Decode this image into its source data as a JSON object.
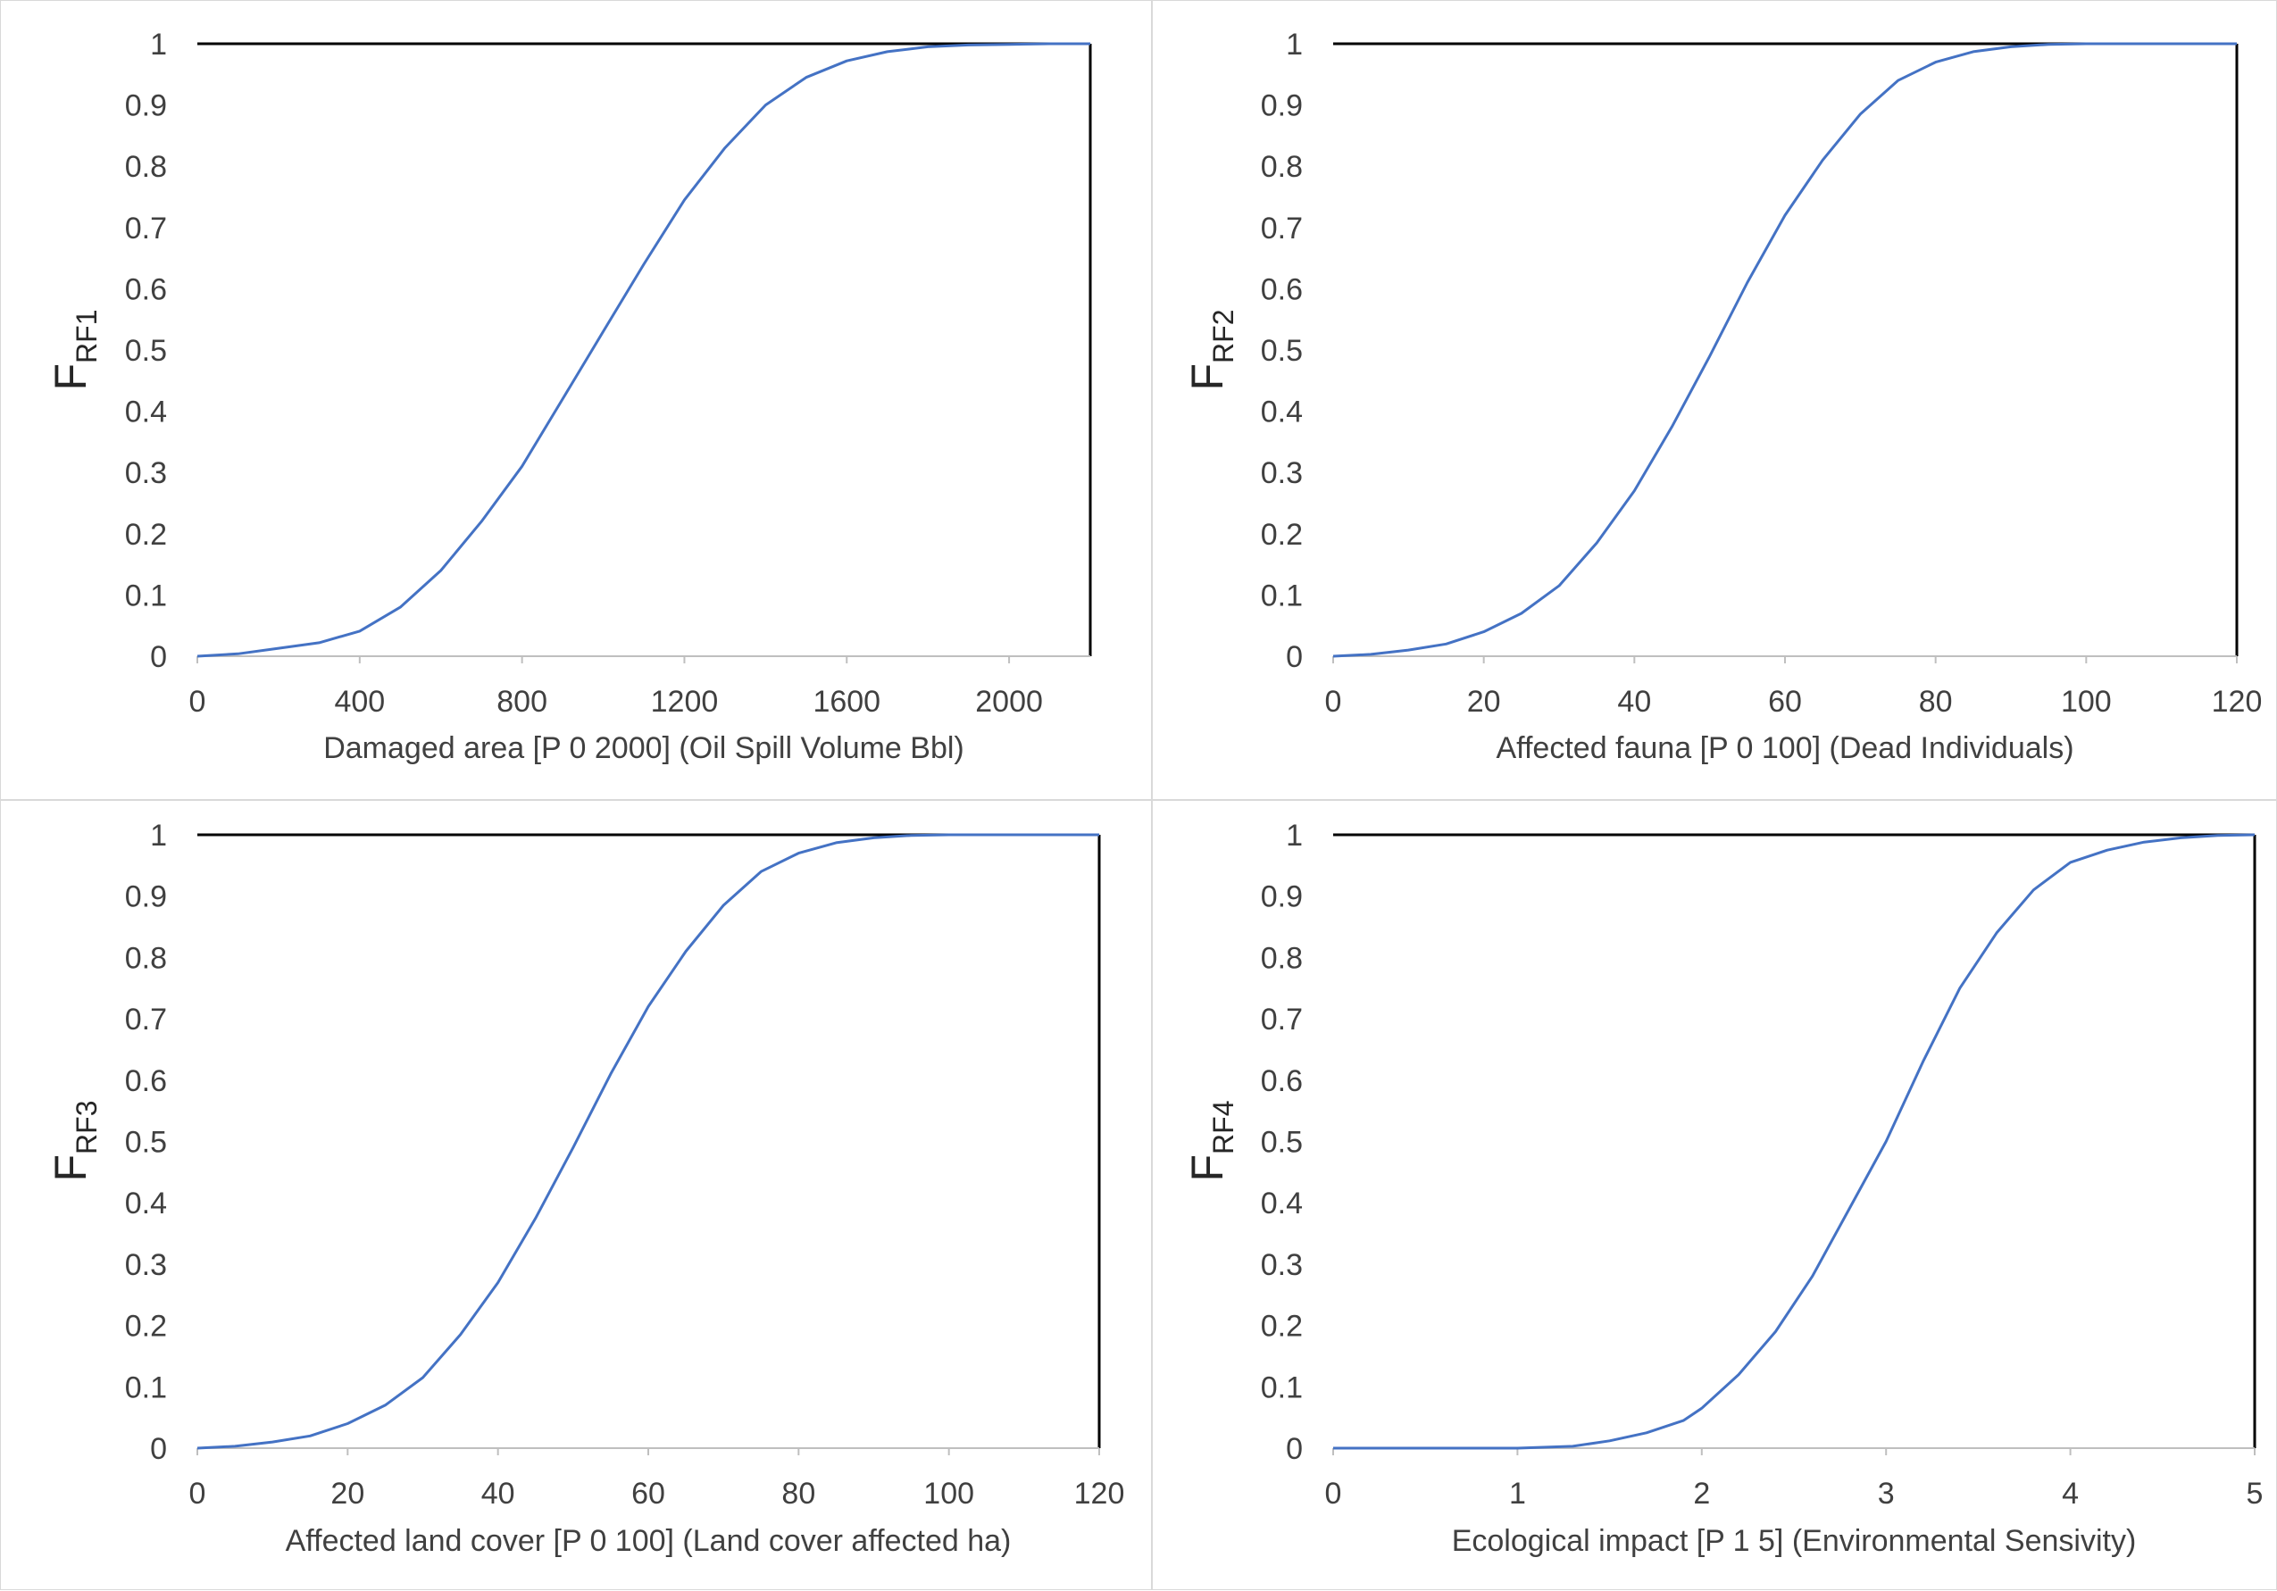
{
  "chart_data": [
    {
      "type": "line",
      "ylabel_main": "F",
      "ylabel_sub": "RF1",
      "xlabel": "Damaged area [P 0 2000] (Oil Spill Volume Bbl)",
      "xlim": [
        0,
        2200
      ],
      "ylim": [
        0,
        1
      ],
      "xticks": [
        0,
        400,
        800,
        1200,
        1600,
        2000
      ],
      "yticks": [
        0,
        0.1,
        0.2,
        0.3,
        0.4,
        0.5,
        0.6,
        0.7,
        0.8,
        0.9,
        1
      ],
      "grid": false,
      "line_color": "#4472c4",
      "series": [
        {
          "x": [
            0,
            100,
            200,
            300,
            400,
            500,
            600,
            700,
            800,
            900,
            1000,
            1100,
            1200,
            1300,
            1400,
            1500,
            1600,
            1700,
            1800,
            1900,
            2000,
            2100,
            2200
          ],
          "y": [
            0,
            0.004,
            0.013,
            0.022,
            0.041,
            0.08,
            0.14,
            0.22,
            0.31,
            0.42,
            0.53,
            0.64,
            0.745,
            0.83,
            0.9,
            0.945,
            0.972,
            0.987,
            0.995,
            0.998,
            0.999,
            1,
            1
          ]
        }
      ]
    },
    {
      "type": "line",
      "ylabel_main": "F",
      "ylabel_sub": "RF2",
      "xlabel": "Affected fauna [P 0 100] (Dead Individuals)",
      "xlim": [
        0,
        120
      ],
      "ylim": [
        0,
        1
      ],
      "xticks": [
        0,
        20,
        40,
        60,
        80,
        100,
        120
      ],
      "yticks": [
        0,
        0.1,
        0.2,
        0.3,
        0.4,
        0.5,
        0.6,
        0.7,
        0.8,
        0.9,
        1
      ],
      "grid": false,
      "line_color": "#4472c4",
      "series": [
        {
          "x": [
            0,
            5,
            10,
            15,
            20,
            25,
            30,
            35,
            40,
            45,
            50,
            55,
            60,
            65,
            70,
            75,
            80,
            85,
            90,
            95,
            100,
            110,
            120
          ],
          "y": [
            0,
            0.003,
            0.01,
            0.02,
            0.04,
            0.07,
            0.115,
            0.185,
            0.27,
            0.375,
            0.49,
            0.61,
            0.72,
            0.81,
            0.885,
            0.94,
            0.97,
            0.987,
            0.995,
            0.999,
            1,
            1,
            1
          ]
        }
      ]
    },
    {
      "type": "line",
      "ylabel_main": "F",
      "ylabel_sub": "RF3",
      "xlabel": "Affected land cover [P 0 100] (Land cover affected ha)",
      "xlim": [
        0,
        120
      ],
      "ylim": [
        0,
        1
      ],
      "xticks": [
        0,
        20,
        40,
        60,
        80,
        100,
        120
      ],
      "yticks": [
        0,
        0.1,
        0.2,
        0.3,
        0.4,
        0.5,
        0.6,
        0.7,
        0.8,
        0.9,
        1
      ],
      "grid": false,
      "line_color": "#4472c4",
      "series": [
        {
          "x": [
            0,
            5,
            10,
            15,
            20,
            25,
            30,
            35,
            40,
            45,
            50,
            55,
            60,
            65,
            70,
            75,
            80,
            85,
            90,
            95,
            100,
            110,
            120
          ],
          "y": [
            0,
            0.003,
            0.01,
            0.02,
            0.04,
            0.07,
            0.115,
            0.185,
            0.27,
            0.375,
            0.49,
            0.61,
            0.72,
            0.81,
            0.885,
            0.94,
            0.97,
            0.987,
            0.995,
            0.999,
            1,
            1,
            1
          ]
        }
      ]
    },
    {
      "type": "line",
      "ylabel_main": "F",
      "ylabel_sub": "RF4",
      "xlabel": "Ecological impact [P 1 5] (Environmental Sensivity)",
      "xlim": [
        0,
        5
      ],
      "ylim": [
        0,
        1
      ],
      "xticks": [
        0,
        1,
        2,
        3,
        4,
        5
      ],
      "yticks": [
        0,
        0.1,
        0.2,
        0.3,
        0.4,
        0.5,
        0.6,
        0.7,
        0.8,
        0.9,
        1
      ],
      "grid": false,
      "line_color": "#4472c4",
      "series": [
        {
          "x": [
            0,
            1,
            1.3,
            1.5,
            1.7,
            1.9,
            2,
            2.2,
            2.4,
            2.6,
            2.8,
            3,
            3.2,
            3.4,
            3.6,
            3.8,
            4,
            4.2,
            4.4,
            4.6,
            4.8,
            5
          ],
          "y": [
            0,
            0,
            0.003,
            0.012,
            0.025,
            0.045,
            0.065,
            0.12,
            0.19,
            0.28,
            0.39,
            0.5,
            0.63,
            0.75,
            0.84,
            0.91,
            0.955,
            0.975,
            0.988,
            0.995,
            0.999,
            1
          ]
        }
      ]
    }
  ]
}
